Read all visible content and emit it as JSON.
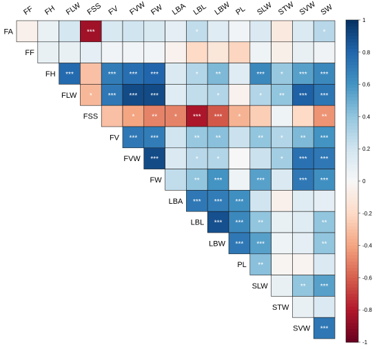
{
  "chart_data": {
    "type": "heatmap",
    "title": "",
    "column_labels": [
      "FF",
      "FH",
      "FLW",
      "FSS",
      "FV",
      "FVW",
      "FW",
      "LBA",
      "LBL",
      "LBW",
      "PL",
      "SLW",
      "STW",
      "SVW",
      "SW"
    ],
    "row_labels": [
      "FA",
      "FF",
      "FH",
      "FLW",
      "FSS",
      "FV",
      "FVW",
      "FW",
      "LBA",
      "LBL",
      "LBW",
      "PL",
      "SLW",
      "STW",
      "SVW"
    ],
    "values": [
      [
        -0.05,
        0.07,
        0.18,
        -0.85,
        0.16,
        0.2,
        0.16,
        0.1,
        0.25,
        0.12,
        0.03,
        0.15,
        -0.1,
        0.15,
        0.28
      ],
      [
        null,
        0.08,
        0.08,
        0.1,
        0.03,
        0.03,
        0.03,
        -0.04,
        -0.2,
        -0.12,
        -0.22,
        0.05,
        -0.06,
        0.08,
        0.04
      ],
      [
        null,
        null,
        0.78,
        -0.3,
        0.7,
        0.76,
        0.8,
        0.15,
        0.3,
        0.45,
        0.12,
        0.65,
        0.38,
        0.55,
        0.65
      ],
      [
        null,
        null,
        null,
        -0.33,
        0.72,
        0.9,
        0.9,
        0.12,
        0.25,
        0.3,
        -0.04,
        0.3,
        0.4,
        0.82,
        0.73
      ],
      [
        null,
        null,
        null,
        null,
        -0.3,
        -0.4,
        -0.5,
        -0.5,
        -0.82,
        -0.62,
        -0.35,
        -0.25,
        0.05,
        -0.2,
        -0.45
      ],
      [
        null,
        null,
        null,
        null,
        null,
        0.72,
        0.7,
        0.2,
        0.38,
        0.42,
        0.22,
        0.4,
        0.3,
        0.45,
        0.6
      ],
      [
        null,
        null,
        null,
        null,
        null,
        null,
        0.9,
        0.15,
        0.28,
        0.3,
        0.0,
        0.22,
        0.35,
        0.75,
        0.72
      ],
      [
        null,
        null,
        null,
        null,
        null,
        null,
        null,
        0.25,
        0.4,
        0.6,
        0.05,
        0.55,
        0.15,
        0.72,
        0.62
      ],
      [
        null,
        null,
        null,
        null,
        null,
        null,
        null,
        null,
        0.72,
        0.7,
        0.62,
        0.2,
        -0.05,
        0.12,
        0.1
      ],
      [
        null,
        null,
        null,
        null,
        null,
        null,
        null,
        null,
        null,
        0.88,
        0.65,
        0.4,
        0.08,
        0.12,
        0.4
      ],
      [
        null,
        null,
        null,
        null,
        null,
        null,
        null,
        null,
        null,
        null,
        0.72,
        0.55,
        0.05,
        0.1,
        0.4
      ],
      [
        null,
        null,
        null,
        null,
        null,
        null,
        null,
        null,
        null,
        null,
        null,
        0.42,
        -0.02,
        -0.03,
        0.15
      ],
      [
        null,
        null,
        null,
        null,
        null,
        null,
        null,
        null,
        null,
        null,
        null,
        null,
        0.08,
        0.4,
        0.55
      ],
      [
        null,
        null,
        null,
        null,
        null,
        null,
        null,
        null,
        null,
        null,
        null,
        null,
        null,
        0.08,
        0.15
      ],
      [
        null,
        null,
        null,
        null,
        null,
        null,
        null,
        null,
        null,
        null,
        null,
        null,
        null,
        null,
        0.72
      ]
    ],
    "significance": [
      [
        "",
        "",
        "",
        "***",
        "",
        "",
        "",
        "",
        "*",
        "",
        "",
        "",
        "",
        "",
        "*"
      ],
      [
        "",
        "",
        "",
        "",
        "",
        "",
        "",
        "",
        "",
        "",
        "",
        "",
        "",
        "",
        ""
      ],
      [
        "",
        "",
        "***",
        "",
        "***",
        "***",
        "***",
        "",
        "*",
        "**",
        "",
        "***",
        "*",
        "***",
        "***"
      ],
      [
        "",
        "",
        "",
        "*",
        "***",
        "***",
        "***",
        "",
        "",
        "*",
        "",
        "*",
        "**",
        "***",
        "***"
      ],
      [
        "",
        "",
        "",
        "",
        "",
        "*",
        "**",
        "*",
        "***",
        "***",
        "*",
        "",
        "",
        "",
        "**"
      ],
      [
        "",
        "",
        "",
        "",
        "",
        "***",
        "***",
        "",
        "**",
        "**",
        "",
        "**",
        "*",
        "**",
        "***"
      ],
      [
        "",
        "",
        "",
        "",
        "",
        "",
        "***",
        "",
        "*",
        "*",
        "",
        "",
        "*",
        "***",
        "***"
      ],
      [
        "",
        "",
        "",
        "",
        "",
        "",
        "",
        "",
        "**",
        "***",
        "",
        "***",
        "",
        "***",
        "***"
      ],
      [
        "",
        "",
        "",
        "",
        "",
        "",
        "",
        "",
        "***",
        "***",
        "***",
        "",
        "",
        "",
        ""
      ],
      [
        "",
        "",
        "",
        "",
        "",
        "",
        "",
        "",
        "",
        "***",
        "***",
        "**",
        "",
        "",
        "**"
      ],
      [
        "",
        "",
        "",
        "",
        "",
        "",
        "",
        "",
        "",
        "",
        "***",
        "***",
        "",
        "",
        "**"
      ],
      [
        "",
        "",
        "",
        "",
        "",
        "",
        "",
        "",
        "",
        "",
        "",
        "**",
        "",
        "",
        ""
      ],
      [
        "",
        "",
        "",
        "",
        "",
        "",
        "",
        "",
        "",
        "",
        "",
        "",
        "",
        "**",
        "***"
      ],
      [
        "",
        "",
        "",
        "",
        "",
        "",
        "",
        "",
        "",
        "",
        "",
        "",
        "",
        "",
        ""
      ],
      [
        "",
        "",
        "",
        "",
        "",
        "",
        "",
        "",
        "",
        "",
        "",
        "",
        "",
        "",
        "***"
      ]
    ],
    "color_scale": {
      "min": -1,
      "max": 1,
      "ticks": [
        "1",
        "0.8",
        "0.6",
        "0.4",
        "0.2",
        "0",
        "-0.2",
        "-0.4",
        "-0.6",
        "-0.8",
        "-1"
      ],
      "negative_color": "#67001f",
      "neutral_color": "#f7f7f7",
      "positive_color": "#053061"
    }
  }
}
